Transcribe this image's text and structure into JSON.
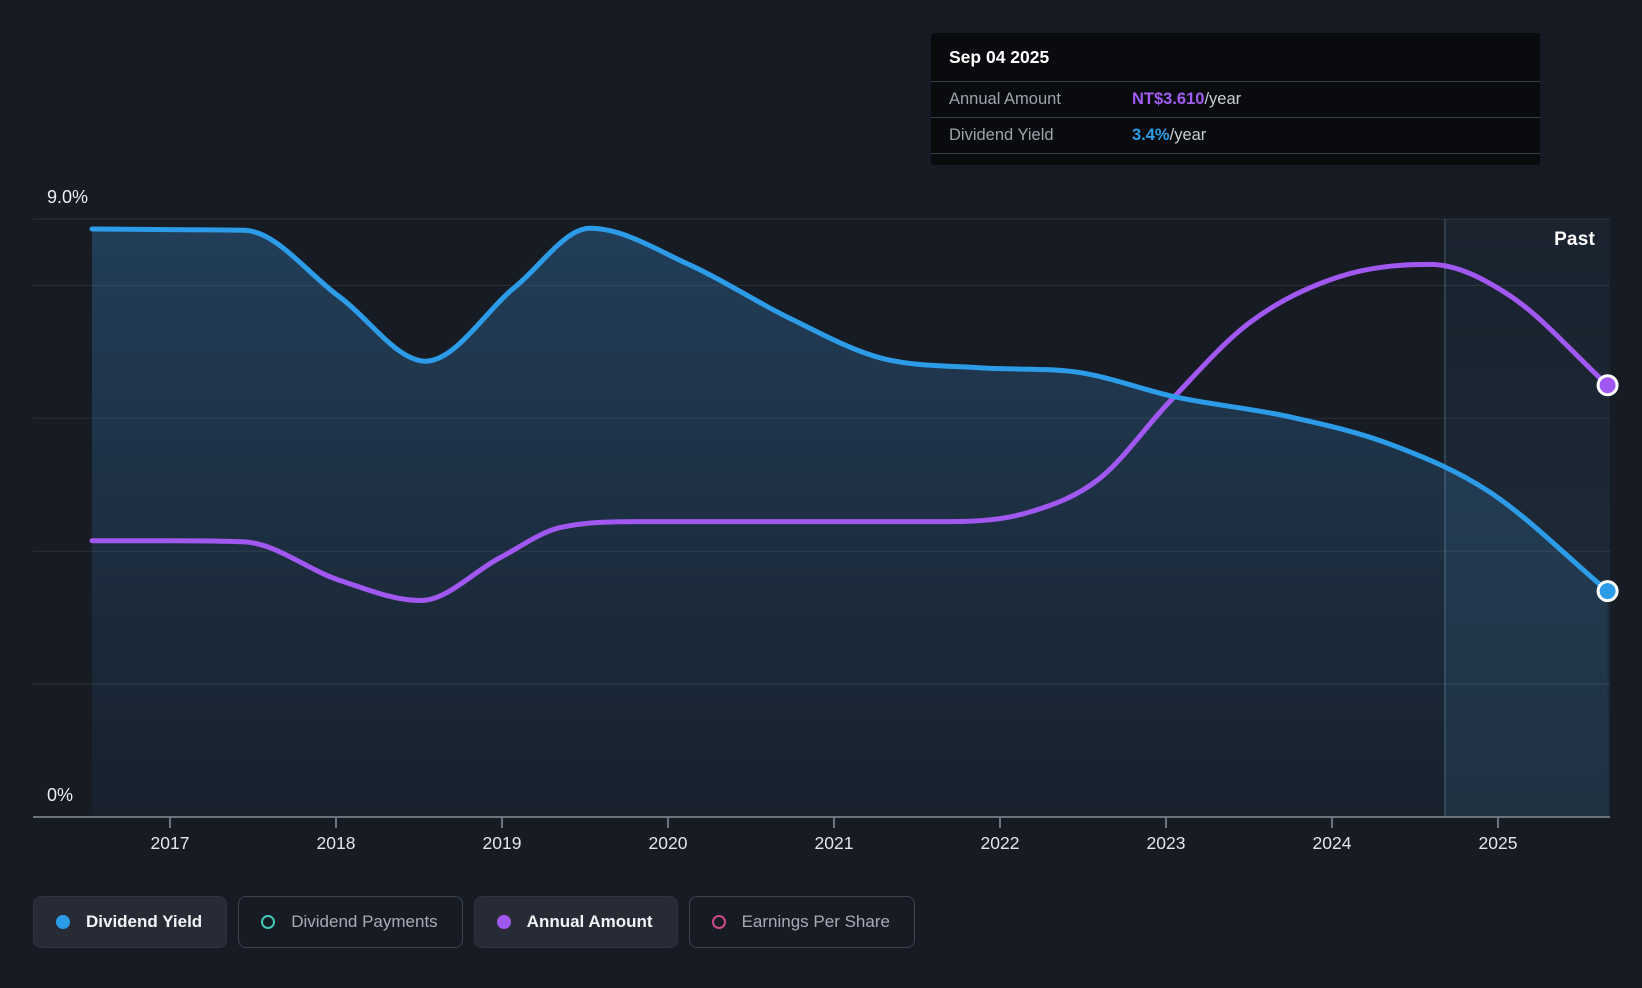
{
  "tooltip": {
    "date": "Sep 04 2025",
    "rows": [
      {
        "label": "Annual Amount",
        "value": "NT$3.610",
        "suffix": "/year"
      },
      {
        "label": "Dividend Yield",
        "value": "3.4%",
        "suffix": "/year"
      }
    ]
  },
  "past_label": "Past",
  "y_axis": {
    "top_label": "9.0%",
    "bottom_label": "0%"
  },
  "legend": [
    {
      "label": "Dividend Yield",
      "color": "#2d9ce8",
      "style": "filled",
      "active": true
    },
    {
      "label": "Dividend Payments",
      "color": "#45c8b8",
      "style": "ring",
      "active": false
    },
    {
      "label": "Annual Amount",
      "color": "#a158f0",
      "style": "filled",
      "active": true
    },
    {
      "label": "Earnings Per Share",
      "color": "#cc4b8d",
      "style": "ring",
      "active": false
    }
  ],
  "chart_data": {
    "type": "area",
    "x_tick_years": [
      2017,
      2018,
      2019,
      2020,
      2021,
      2022,
      2023,
      2024,
      2025
    ],
    "x_range": [
      2016.53,
      2025.66
    ],
    "past_region_start": 2024.68,
    "yield_axis": {
      "min": 0,
      "max": 9,
      "unit": "%",
      "gridlines_pct": [
        9,
        8,
        6,
        4,
        2,
        0
      ],
      "top_label": "9.0%",
      "bottom_label": "0%"
    },
    "amount_axis": {
      "min": 0,
      "max": 5,
      "unit": "NT$/year"
    },
    "series": [
      {
        "name": "Dividend Yield",
        "axis": "yield",
        "color": "#2d9ce8",
        "area_fill": true,
        "end_value_label": "3.4%/year",
        "points": [
          [
            2016.53,
            8.85
          ],
          [
            2017.0,
            8.84
          ],
          [
            2017.45,
            8.83
          ],
          [
            2018.02,
            7.83
          ],
          [
            2018.54,
            6.86
          ],
          [
            2019.08,
            7.98
          ],
          [
            2019.53,
            8.86
          ],
          [
            2020.13,
            8.31
          ],
          [
            2020.73,
            7.51
          ],
          [
            2021.28,
            6.91
          ],
          [
            2021.88,
            6.76
          ],
          [
            2022.45,
            6.7
          ],
          [
            2023.06,
            6.32
          ],
          [
            2023.75,
            6.02
          ],
          [
            2024.35,
            5.61
          ],
          [
            2024.95,
            4.89
          ],
          [
            2025.66,
            3.4
          ]
        ]
      },
      {
        "name": "Annual Amount",
        "axis": "amount",
        "color": "#a158f0",
        "area_fill": false,
        "end_value_label": "NT$3.610/year",
        "points": [
          [
            2016.53,
            2.31
          ],
          [
            2017.0,
            2.31
          ],
          [
            2017.45,
            2.3
          ],
          [
            2018.02,
            1.98
          ],
          [
            2018.51,
            1.81
          ],
          [
            2018.99,
            2.17
          ],
          [
            2019.35,
            2.42
          ],
          [
            2019.83,
            2.47
          ],
          [
            2020.8,
            2.47
          ],
          [
            2021.7,
            2.47
          ],
          [
            2022.18,
            2.55
          ],
          [
            2022.6,
            2.83
          ],
          [
            2023.02,
            3.47
          ],
          [
            2023.51,
            4.14
          ],
          [
            2024.05,
            4.52
          ],
          [
            2024.59,
            4.62
          ],
          [
            2025.07,
            4.36
          ],
          [
            2025.66,
            3.61
          ]
        ]
      }
    ]
  }
}
